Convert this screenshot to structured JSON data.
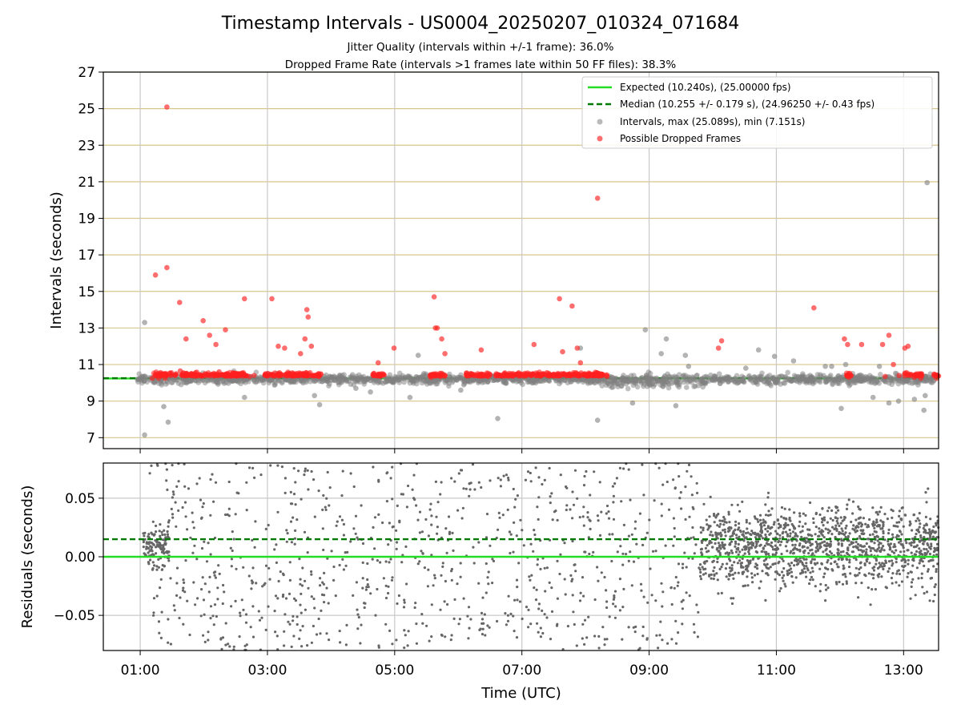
{
  "chart_data": [
    {
      "type": "scatter",
      "title": "Timestamp Intervals - US0004_20250207_010324_071684",
      "subtitle_lines": [
        "Jitter Quality (intervals within +/-1 frame): 36.0%",
        "Dropped Frame Rate (intervals >1 frames late within 50 FF files): 38.3%"
      ],
      "xlabel": "",
      "ylabel": "Intervals (seconds)",
      "xlim_hours": [
        0.42,
        13.55
      ],
      "ylim": [
        6.4,
        27
      ],
      "yticks": [
        7,
        9,
        11,
        13,
        15,
        17,
        19,
        21,
        23,
        25,
        27
      ],
      "ytick_labels": [
        "7",
        "9",
        "11",
        "13",
        "15",
        "17",
        "19",
        "21",
        "23",
        "25",
        "27"
      ],
      "grid": true,
      "legend_position": "top-right",
      "legend": [
        "Expected (10.240s), (25.00000 fps)",
        "Median (10.255 +/- 0.179 s), (24.96250 +/- 0.43 fps)",
        "Intervals, max (25.089s), min (7.151s)",
        "Possible Dropped Frames"
      ],
      "reference_lines": {
        "expected": 10.24,
        "median": 10.255
      },
      "colors": {
        "expected": "#22dd22",
        "median": "#007a00",
        "intervals": "#808080",
        "dropped": "#ff2020",
        "hgrid": "#d8c68a",
        "vgrid": "#c8c8c8"
      },
      "series": [
        {
          "name": "Possible Dropped Frames",
          "x": [
            1.42,
            1.24,
            1.42,
            1.62,
            1.72,
            1.99,
            2.09,
            2.19,
            2.34,
            2.64,
            3.07,
            3.17,
            3.27,
            3.62,
            3.64,
            3.69,
            3.59,
            3.52,
            4.74,
            4.99,
            5.62,
            5.64,
            5.67,
            5.74,
            5.79,
            6.36,
            7.19,
            7.59,
            7.64,
            7.79,
            7.87,
            7.92,
            8.19,
            10.09,
            10.14,
            11.59,
            12.07,
            12.12,
            12.34,
            12.67,
            12.77,
            12.84,
            13.02,
            13.07,
            1.19,
            1.29,
            1.39,
            1.49,
            1.56,
            1.63,
            1.71,
            1.79,
            1.87,
            1.93,
            2.02,
            2.13,
            2.24,
            2.33,
            2.46,
            2.53,
            2.61,
            2.72,
            2.79,
            2.97,
            3.08,
            3.19,
            3.28,
            3.41,
            3.52,
            3.61,
            3.72,
            3.81,
            4.67,
            4.77,
            5.57,
            5.66,
            5.72,
            6.14,
            6.21,
            6.29,
            6.38,
            6.47,
            6.61,
            6.72,
            6.83,
            6.95,
            7.06,
            7.17,
            7.28,
            7.39,
            7.51,
            7.62,
            7.73,
            7.85,
            7.96,
            8.07,
            8.17,
            8.27,
            8.34,
            12.14,
            12.71,
            12.93,
            13.07,
            13.17,
            13.27,
            13.52
          ],
          "y": [
            25.09,
            15.9,
            16.3,
            14.4,
            12.4,
            13.4,
            12.6,
            12.1,
            12.9,
            14.6,
            14.6,
            12.0,
            11.9,
            14.0,
            13.6,
            12.0,
            12.4,
            11.6,
            11.1,
            11.9,
            14.7,
            13.0,
            13.0,
            12.4,
            11.6,
            11.8,
            12.1,
            14.6,
            11.7,
            14.2,
            11.9,
            11.1,
            20.1,
            11.9,
            12.3,
            14.1,
            12.4,
            12.1,
            12.1,
            12.1,
            12.6,
            11.0,
            11.9,
            12.0,
            10.25,
            10.25,
            10.25,
            10.55,
            10.45,
            10.65,
            10.5,
            10.4,
            10.55,
            10.45,
            10.5,
            10.45,
            10.6,
            10.4,
            10.55,
            10.45,
            10.5,
            10.35,
            10.4,
            10.5,
            10.45,
            10.55,
            10.4,
            10.5,
            10.45,
            10.55,
            10.4,
            10.35,
            10.4,
            10.45,
            10.3,
            10.4,
            10.35,
            10.45,
            10.5,
            10.4,
            10.45,
            10.35,
            10.45,
            10.5,
            10.4,
            10.55,
            10.45,
            10.5,
            10.4,
            10.55,
            10.45,
            10.5,
            10.4,
            10.55,
            10.45,
            10.5,
            10.4,
            10.45,
            10.35,
            10.3,
            10.35,
            10.4,
            10.5,
            10.3,
            10.25,
            10.25
          ]
        },
        {
          "name": "Intervals, max (25.089s), min (7.151s)",
          "x": [
            1.07,
            1.07,
            1.44,
            13.37,
            7.92,
            8.19,
            6.62,
            8.94,
            9.27,
            9.19,
            9.57,
            10.72,
            10.97,
            11.27,
            9.42,
            8.74,
            12.77,
            12.52,
            12.62,
            12.02,
            11.77,
            11.87,
            12.92,
            13.17,
            13.32,
            3.74,
            1.37,
            2.64,
            3.82,
            4.39,
            5.37,
            9.62,
            10.52,
            12.09,
            13.34,
            4.62,
            6.04,
            5.24,
            9.84,
            11.47
          ],
          "y": [
            13.3,
            7.15,
            7.85,
            20.95,
            11.9,
            7.95,
            8.05,
            12.9,
            12.4,
            11.6,
            11.5,
            11.8,
            11.45,
            11.2,
            8.75,
            8.9,
            8.9,
            9.2,
            10.9,
            8.6,
            10.9,
            10.9,
            9.0,
            9.1,
            8.5,
            9.3,
            8.7,
            9.2,
            8.8,
            9.7,
            11.5,
            10.9,
            10.8,
            11.0,
            9.3,
            9.5,
            9.6,
            9.2,
            10.0,
            10.1
          ]
        }
      ]
    },
    {
      "type": "scatter",
      "title": "",
      "xlabel": "Time (UTC)",
      "ylabel": "Residuals (seconds)",
      "xlim_hours": [
        0.42,
        13.55
      ],
      "ylim": [
        -0.08,
        0.08
      ],
      "yticks": [
        -0.05,
        0.0,
        0.05
      ],
      "ytick_labels": [
        "−0.05",
        "0.00",
        "0.05"
      ],
      "xticks_hours": [
        1,
        3,
        5,
        7,
        9,
        11,
        13
      ],
      "xtick_labels": [
        "01:00",
        "03:00",
        "05:00",
        "07:00",
        "09:00",
        "11:00",
        "13:00"
      ],
      "grid": true,
      "reference_lines": {
        "expected": 0.0,
        "median": 0.015
      },
      "colors": {
        "points": "#666666",
        "expected": "#22dd22",
        "median": "#007a00",
        "grid": "#c8c8c8"
      },
      "series": [
        {
          "name": "",
          "density_profile_hours": [
            1.0,
            1.5,
            2.5,
            4.0,
            6.0,
            8.0,
            9.8,
            11.0,
            12.5,
            13.5
          ],
          "sample_points": {
            "x": [
              1.05,
              1.15,
              1.2,
              1.3,
              1.4,
              1.7,
              2.3,
              2.9,
              3.5,
              4.1,
              4.7,
              5.3,
              5.9,
              6.5,
              7.1,
              7.7,
              8.3,
              8.9,
              9.5,
              10.1,
              10.7,
              11.3,
              11.9,
              12.5,
              13.1
            ],
            "y": [
              0.02,
              0.005,
              -0.01,
              0.012,
              0.0,
              0.06,
              -0.04,
              0.07,
              -0.07,
              0.03,
              -0.05,
              0.05,
              -0.02,
              0.065,
              -0.06,
              0.04,
              -0.075,
              0.01,
              0.055,
              0.005,
              -0.01,
              0.02,
              0.0,
              -0.015,
              0.03
            ]
          }
        }
      ]
    }
  ]
}
